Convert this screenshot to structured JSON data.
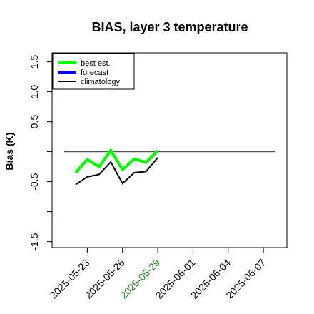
{
  "chart_data": {
    "type": "line",
    "title": "BIAS, layer 3 temperature",
    "ylabel": "Bias (K)",
    "xlabel": "",
    "ylim": [
      -1.6,
      1.65
    ],
    "xlim": [
      "2025-05-20",
      "2025-06-09"
    ],
    "yticks": [
      {
        "value": -1.5,
        "label": "-1.5"
      },
      {
        "value": -1.0,
        "label": ""
      },
      {
        "value": -0.5,
        "label": "-0.5"
      },
      {
        "value": 0.0,
        "label": ""
      },
      {
        "value": 0.5,
        "label": "0.5"
      },
      {
        "value": 1.0,
        "label": "1.0"
      },
      {
        "value": 1.5,
        "label": "1.5"
      }
    ],
    "xticks": [
      {
        "date": "2025-05-23",
        "label": "2025-05-23",
        "color": "#000000"
      },
      {
        "date": "2025-05-26",
        "label": "2025-05-26",
        "color": "#000000"
      },
      {
        "date": "2025-05-29",
        "label": "2025-05-29",
        "color": "#228b22"
      },
      {
        "date": "2025-06-01",
        "label": "2025-06-01",
        "color": "#000000"
      },
      {
        "date": "2025-06-04",
        "label": "2025-06-04",
        "color": "#000000"
      },
      {
        "date": "2025-06-07",
        "label": "2025-06-07",
        "color": "#000000"
      }
    ],
    "reference_line": {
      "y": 0.0,
      "x_start": "2025-05-21",
      "x_end": "2025-06-08",
      "color": "#555555"
    },
    "series": [
      {
        "name": "best est.",
        "color": "#00ff00",
        "x": [
          "2025-05-22",
          "2025-05-23",
          "2025-05-24",
          "2025-05-25",
          "2025-05-26",
          "2025-05-27",
          "2025-05-28",
          "2025-05-29"
        ],
        "values": [
          -0.35,
          -0.13,
          -0.25,
          0.02,
          -0.3,
          -0.12,
          -0.18,
          0.02
        ]
      },
      {
        "name": "forecast",
        "color": "#0000ff",
        "x": [],
        "values": []
      },
      {
        "name": "climatology",
        "color": "#000000",
        "x": [
          "2025-05-22",
          "2025-05-23",
          "2025-05-24",
          "2025-05-25",
          "2025-05-26",
          "2025-05-27",
          "2025-05-28",
          "2025-05-29"
        ],
        "values": [
          -0.55,
          -0.42,
          -0.38,
          -0.17,
          -0.53,
          -0.35,
          -0.33,
          -0.1
        ]
      }
    ],
    "legend_position": "top-left",
    "grid": false
  }
}
